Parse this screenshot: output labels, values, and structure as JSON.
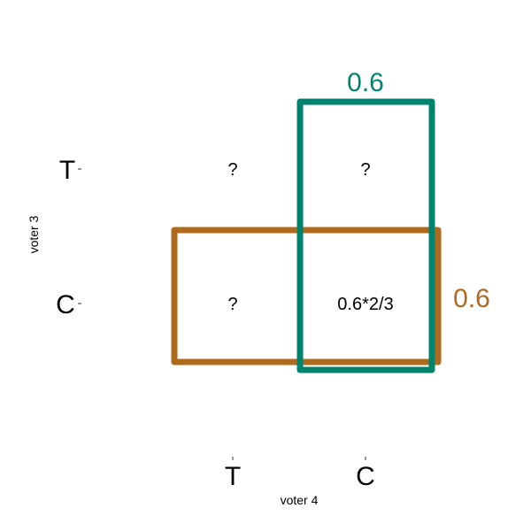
{
  "colors": {
    "teal": "#008470",
    "orange": "#B06A1E",
    "text": "#000000",
    "tick": "#333333"
  },
  "axes": {
    "ylabel": "voter 3",
    "xlabel": "voter 4",
    "y_ticks": [
      "T",
      "C"
    ],
    "x_ticks": [
      "T",
      "C"
    ]
  },
  "cells": {
    "TT": "?",
    "TC": "?",
    "CT": "?",
    "CC": "0.6*2/3"
  },
  "boxes": {
    "teal_label": "0.6",
    "orange_label": "0.6"
  }
}
